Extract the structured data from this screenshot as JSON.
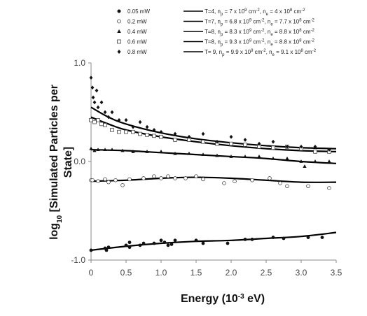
{
  "chart_data": {
    "type": "scatter",
    "xlabel": {
      "main": "Energy (10",
      "sup": "-3",
      "tail": " eV)"
    },
    "ylabel": {
      "pre": "log",
      "sub": "10",
      "post": " [Simulated Particles per",
      "line2": "State]"
    },
    "xlim": [
      0,
      3.5
    ],
    "ylim": [
      -1.0,
      1.0
    ],
    "xticks": [
      "0",
      "0.5",
      "1.0",
      "1.5",
      "2.0",
      "2.5",
      "3.0",
      "3.5"
    ],
    "yticks": [
      "1.0",
      "0.0",
      "-1.0"
    ],
    "grid": false,
    "legend_position": "top-right",
    "series": [
      {
        "name": "0.05 mW",
        "marker": "filled-circle",
        "fit_label": {
          "p1": "T=4,  n",
          "ps": "p",
          "p2": " = 7 x 10",
          "pe": "9",
          "p3": " cm",
          "pu": "-2",
          "p4": ",  n",
          "es": "e",
          "p5": " = 4 x 10",
          "ee": "8",
          "p6": " cm",
          "eu": "-2"
        },
        "points": [
          [
            0.0,
            -0.9
          ],
          [
            0.2,
            -0.88
          ],
          [
            0.22,
            -0.9
          ],
          [
            0.25,
            -0.87
          ],
          [
            0.5,
            -0.85
          ],
          [
            0.55,
            -0.82
          ],
          [
            0.55,
            -0.87
          ],
          [
            0.7,
            -0.85
          ],
          [
            0.75,
            -0.83
          ],
          [
            0.9,
            -0.83
          ],
          [
            1.0,
            -0.8
          ],
          [
            1.05,
            -0.82
          ],
          [
            1.1,
            -0.85
          ],
          [
            1.15,
            -0.84
          ],
          [
            1.2,
            -0.8
          ],
          [
            1.5,
            -0.8
          ],
          [
            1.6,
            -0.83
          ],
          [
            1.95,
            -0.83
          ],
          [
            2.2,
            -0.79
          ],
          [
            2.3,
            -0.79
          ],
          [
            2.6,
            -0.77
          ],
          [
            2.75,
            -0.78
          ],
          [
            3.1,
            -0.77
          ],
          [
            3.3,
            -0.77
          ]
        ],
        "fit": [
          [
            0.0,
            -0.9
          ],
          [
            0.5,
            -0.86
          ],
          [
            1.0,
            -0.83
          ],
          [
            1.5,
            -0.81
          ],
          [
            2.0,
            -0.8
          ],
          [
            2.5,
            -0.78
          ],
          [
            3.0,
            -0.76
          ],
          [
            3.5,
            -0.72
          ]
        ]
      },
      {
        "name": "0.2 mW",
        "marker": "open-circle",
        "fit_label": {
          "p1": "T=7,  n",
          "ps": "p",
          "p2": " = 6.8 x 10",
          "pe": "9",
          "p3": " cm",
          "pu": "-2",
          "p4": ", n",
          "es": "e",
          "p5": " = 7.7 x 10",
          "ee": "8",
          "p6": " cm",
          "eu": "-2"
        },
        "points": [
          [
            0.0,
            -0.19
          ],
          [
            0.02,
            -0.19
          ],
          [
            0.1,
            -0.2
          ],
          [
            0.2,
            -0.18
          ],
          [
            0.25,
            -0.21
          ],
          [
            0.35,
            -0.19
          ],
          [
            0.45,
            -0.24
          ],
          [
            0.55,
            -0.18
          ],
          [
            0.75,
            -0.17
          ],
          [
            0.9,
            -0.15
          ],
          [
            1.0,
            -0.17
          ],
          [
            1.1,
            -0.15
          ],
          [
            1.2,
            -0.17
          ],
          [
            1.35,
            -0.17
          ],
          [
            1.5,
            -0.15
          ],
          [
            1.6,
            -0.18
          ],
          [
            1.9,
            -0.22
          ],
          [
            2.05,
            -0.2
          ],
          [
            2.3,
            -0.19
          ],
          [
            2.55,
            -0.17
          ],
          [
            2.7,
            -0.22
          ],
          [
            2.8,
            -0.25
          ],
          [
            3.1,
            -0.25
          ],
          [
            3.4,
            -0.27
          ]
        ],
        "fit": [
          [
            0.0,
            -0.2
          ],
          [
            0.5,
            -0.19
          ],
          [
            1.0,
            -0.17
          ],
          [
            1.5,
            -0.16
          ],
          [
            2.0,
            -0.17
          ],
          [
            2.5,
            -0.19
          ],
          [
            3.0,
            -0.21
          ],
          [
            3.5,
            -0.21
          ]
        ]
      },
      {
        "name": "0.4 mW",
        "marker": "filled-triangle",
        "fit_label": {
          "p1": "T=8,  n",
          "ps": "p",
          "p2": " = 8.3 x 10",
          "pe": "9",
          "p3": " cm",
          "pu": "-2",
          "p4": ", n",
          "es": "e",
          "p5": " = 8.8 x 10",
          "ee": "8",
          "p6": " cm",
          "eu": "-2"
        },
        "points": [
          [
            0.0,
            0.13
          ],
          [
            0.05,
            0.11
          ],
          [
            0.1,
            0.12
          ],
          [
            0.2,
            0.12
          ],
          [
            0.3,
            0.12
          ],
          [
            0.45,
            0.11
          ],
          [
            0.6,
            0.1
          ],
          [
            0.8,
            0.1
          ],
          [
            1.0,
            0.1
          ],
          [
            1.2,
            0.08
          ],
          [
            1.4,
            0.08
          ],
          [
            1.6,
            0.07
          ],
          [
            1.8,
            0.06
          ],
          [
            2.0,
            0.05
          ],
          [
            2.2,
            0.05
          ],
          [
            2.4,
            0.05
          ],
          [
            2.6,
            0.03
          ],
          [
            2.8,
            0.03
          ],
          [
            3.0,
            0.0
          ],
          [
            3.05,
            -0.05
          ],
          [
            3.2,
            0.0
          ],
          [
            3.4,
            0.0
          ]
        ],
        "fit": [
          [
            0.0,
            0.12
          ],
          [
            0.5,
            0.11
          ],
          [
            1.0,
            0.09
          ],
          [
            1.5,
            0.07
          ],
          [
            2.0,
            0.05
          ],
          [
            2.5,
            0.03
          ],
          [
            3.0,
            0.0
          ],
          [
            3.5,
            -0.02
          ]
        ]
      },
      {
        "name": "0.6 mW",
        "marker": "open-square",
        "fit_label": {
          "p1": "T=8,  n",
          "ps": "p",
          "p2": " = 9.3 x 10",
          "pe": "9",
          "p3": " cm",
          "pu": "-2",
          "p4": ", n",
          "es": "e",
          "p5": " = 8.8 x 10",
          "ee": "8",
          "p6": " cm",
          "eu": "-2"
        },
        "points": [
          [
            0.0,
            0.42
          ],
          [
            0.05,
            0.4
          ],
          [
            0.1,
            0.42
          ],
          [
            0.15,
            0.38
          ],
          [
            0.2,
            0.37
          ],
          [
            0.3,
            0.32
          ],
          [
            0.4,
            0.3
          ],
          [
            0.5,
            0.3
          ],
          [
            0.6,
            0.3
          ],
          [
            0.7,
            0.28
          ],
          [
            0.8,
            0.27
          ],
          [
            0.9,
            0.26
          ],
          [
            1.0,
            0.25
          ],
          [
            1.2,
            0.22
          ],
          [
            1.4,
            0.22
          ],
          [
            1.6,
            0.2
          ],
          [
            1.8,
            0.18
          ],
          [
            2.0,
            0.18
          ],
          [
            2.2,
            0.17
          ],
          [
            2.4,
            0.15
          ],
          [
            2.6,
            0.14
          ],
          [
            2.8,
            0.15
          ],
          [
            3.0,
            0.13
          ],
          [
            3.2,
            0.1
          ],
          [
            3.4,
            0.1
          ]
        ],
        "fit": [
          [
            0.0,
            0.45
          ],
          [
            0.25,
            0.38
          ],
          [
            0.5,
            0.32
          ],
          [
            1.0,
            0.25
          ],
          [
            1.5,
            0.2
          ],
          [
            2.0,
            0.16
          ],
          [
            2.5,
            0.13
          ],
          [
            3.0,
            0.11
          ],
          [
            3.5,
            0.1
          ]
        ]
      },
      {
        "name": "0.8 mW",
        "marker": "filled-diamond",
        "fit_label": {
          "p1": "T= 9,  n",
          "ps": "p",
          "p2": " = 9.9 x 10",
          "pe": "9",
          "p3": " cm",
          "pu": "-2",
          "p4": ", n",
          "es": "e",
          "p5": " = 9.1 x 10",
          "ee": "8",
          "p6": " cm",
          "eu": "-2"
        },
        "points": [
          [
            0.0,
            0.85
          ],
          [
            0.02,
            0.75
          ],
          [
            0.03,
            0.65
          ],
          [
            0.05,
            0.6
          ],
          [
            0.08,
            0.72
          ],
          [
            0.1,
            0.55
          ],
          [
            0.15,
            0.6
          ],
          [
            0.2,
            0.5
          ],
          [
            0.25,
            0.45
          ],
          [
            0.3,
            0.5
          ],
          [
            0.4,
            0.42
          ],
          [
            0.5,
            0.42
          ],
          [
            0.6,
            0.35
          ],
          [
            0.7,
            0.4
          ],
          [
            0.8,
            0.35
          ],
          [
            0.9,
            0.32
          ],
          [
            1.0,
            0.3
          ],
          [
            1.2,
            0.28
          ],
          [
            1.4,
            0.25
          ],
          [
            1.6,
            0.28
          ],
          [
            1.8,
            0.2
          ],
          [
            2.0,
            0.25
          ],
          [
            2.2,
            0.22
          ],
          [
            2.4,
            0.18
          ],
          [
            2.6,
            0.2
          ],
          [
            2.8,
            0.15
          ],
          [
            3.0,
            0.15
          ],
          [
            3.2,
            0.15
          ],
          [
            3.4,
            0.12
          ]
        ],
        "fit": [
          [
            0.0,
            0.55
          ],
          [
            0.25,
            0.45
          ],
          [
            0.5,
            0.38
          ],
          [
            1.0,
            0.29
          ],
          [
            1.5,
            0.23
          ],
          [
            2.0,
            0.19
          ],
          [
            2.5,
            0.16
          ],
          [
            3.0,
            0.14
          ],
          [
            3.5,
            0.13
          ]
        ]
      }
    ]
  }
}
